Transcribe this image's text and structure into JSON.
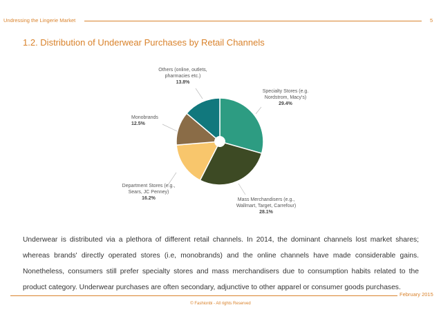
{
  "header": {
    "title": "Undressing the Lingerie Market",
    "page": "5"
  },
  "chart_data": {
    "type": "pie",
    "title": "1.2. Distribution of Underwear Purchases by Retail Channels",
    "categories": [
      "Specialty Stores (e.g. Nordstrom, Macy's)",
      "Mass Merchandisers (e.g., Wallmart, Target, Carrefour)",
      "Department Stores (e.g., Sears, JC Penney)",
      "Monobrands",
      "Others (online, outlets, pharmacies etc.)"
    ],
    "values": [
      29.4,
      28.1,
      16.2,
      12.5,
      13.8
    ],
    "value_labels": [
      "29.4%",
      "28.1%",
      "16.2%",
      "12.5%",
      "13.8%"
    ],
    "colors": [
      "#2d9c82",
      "#3d4a24",
      "#f8c66c",
      "#8a6c47",
      "#11787d"
    ]
  },
  "body": "Underwear is distributed via a plethora of different retail channels. In 2014, the dominant channels lost market shares; whereas brands' directly operated stores (i.e, monobrands) and the online channels have made considerable gains. Nonetheless, consumers still prefer specialty stores and mass merchandisers due to consumption habits related to the product category. Underwear purchases are often secondary, adjunctive to other apparel or consumer goods purchases.",
  "footer": {
    "date": "February 2015",
    "copyright": "© Fashionbi - All rights Reserved"
  }
}
